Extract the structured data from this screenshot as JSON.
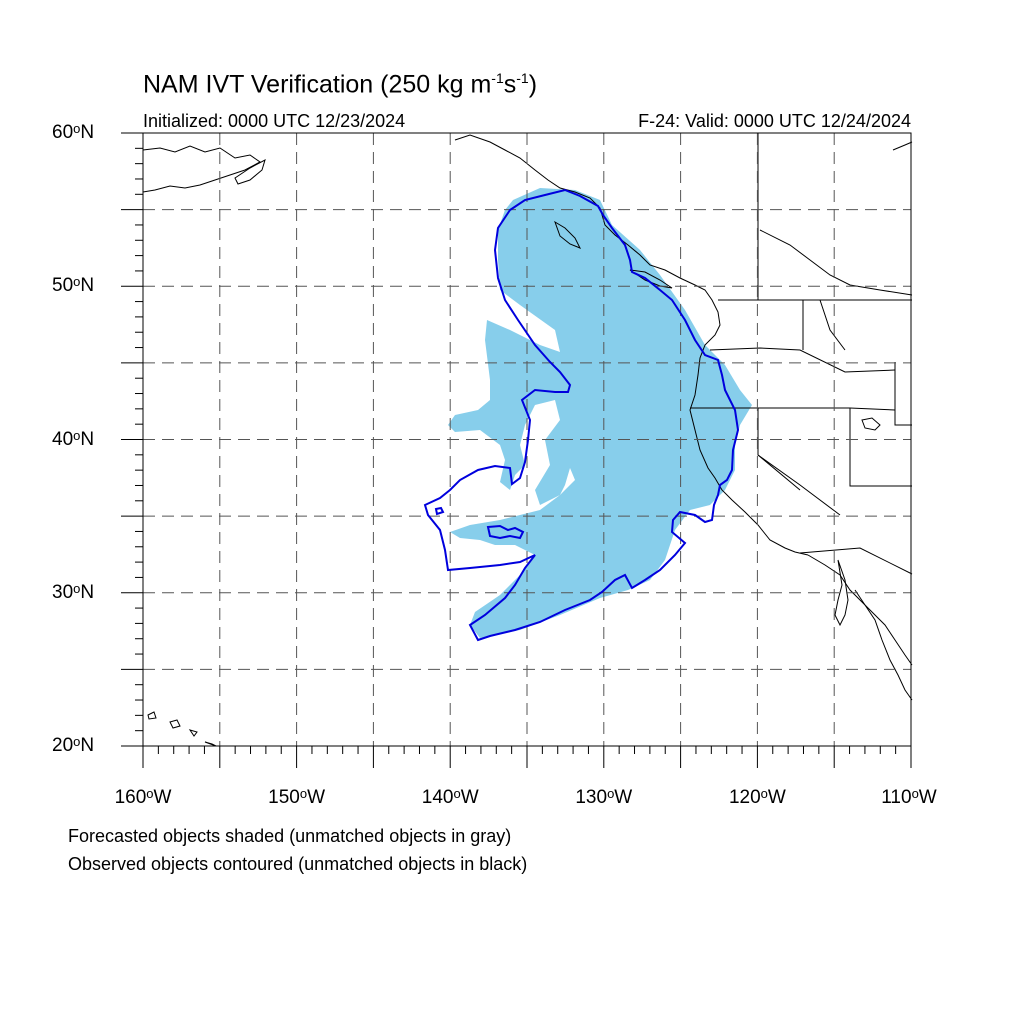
{
  "title": {
    "main": "NAM IVT Verification (250 kg m",
    "exp1": "-1",
    "mid": "s",
    "exp2": "-1",
    "end": ")"
  },
  "init_text": "Initialized: 0000 UTC 12/23/2024",
  "valid_text": "F-24: Valid: 0000 UTC 12/24/2024",
  "lat_labels": [
    {
      "value": "60",
      "suffix": "N"
    },
    {
      "value": "50",
      "suffix": "N"
    },
    {
      "value": "40",
      "suffix": "N"
    },
    {
      "value": "30",
      "suffix": "N"
    },
    {
      "value": "20",
      "suffix": "N"
    }
  ],
  "lon_labels": [
    {
      "value": "160",
      "suffix": "W"
    },
    {
      "value": "150",
      "suffix": "W"
    },
    {
      "value": "140",
      "suffix": "W"
    },
    {
      "value": "130",
      "suffix": "W"
    },
    {
      "value": "120",
      "suffix": "W"
    },
    {
      "value": "110",
      "suffix": "W"
    }
  ],
  "notes": [
    "Forecasted objects shaded (unmatched objects in gray)",
    "Observed objects contoured (unmatched objects in black)"
  ],
  "colors": {
    "forecast_fill": "#87ceeb",
    "observed_contour": "#0000dd",
    "grid": "#555555",
    "coast": "#000000"
  }
}
